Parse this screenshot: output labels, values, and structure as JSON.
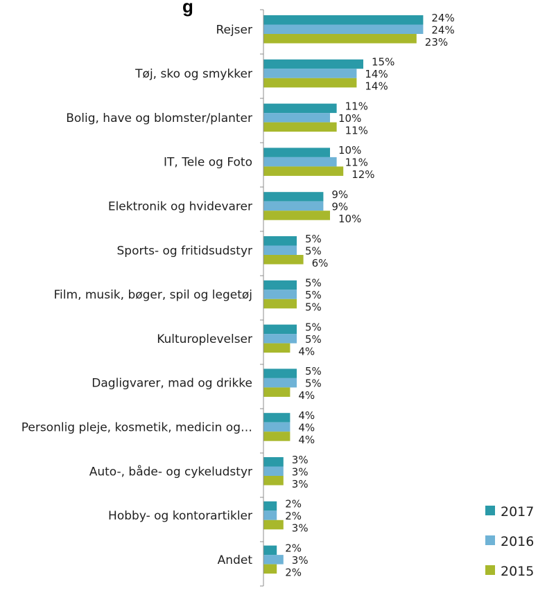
{
  "title_fragment": "g",
  "chart_data": {
    "type": "bar",
    "orientation": "horizontal",
    "categories": [
      "Rejser",
      "Tøj, sko og smykker",
      "Bolig, have og blomster/planter",
      "IT, Tele og Foto",
      "Elektronik og hvidevarer",
      "Sports- og fritidsudstyr",
      "Film, musik, bøger, spil og legetøj",
      "Kulturoplevelser",
      "Dagligvarer, mad og drikke",
      "Personlig pleje, kosmetik, medicin og…",
      "Auto-, både- og cykeludstyr",
      "Hobby- og kontorartikler",
      "Andet"
    ],
    "series": [
      {
        "name": "2017",
        "color": "#2a9aa8",
        "values": [
          24,
          15,
          11,
          10,
          9,
          5,
          5,
          5,
          5,
          4,
          3,
          2,
          2
        ]
      },
      {
        "name": "2016",
        "color": "#6fb3d6",
        "values": [
          24,
          14,
          10,
          11,
          9,
          5,
          5,
          5,
          5,
          4,
          3,
          2,
          3
        ]
      },
      {
        "name": "2015",
        "color": "#a8b82c",
        "values": [
          23,
          14,
          11,
          12,
          10,
          6,
          5,
          4,
          4,
          4,
          3,
          3,
          2
        ]
      }
    ],
    "value_suffix": "%",
    "xlim": [
      0,
      25
    ],
    "grid": false,
    "legend_position": "bottom-right"
  }
}
